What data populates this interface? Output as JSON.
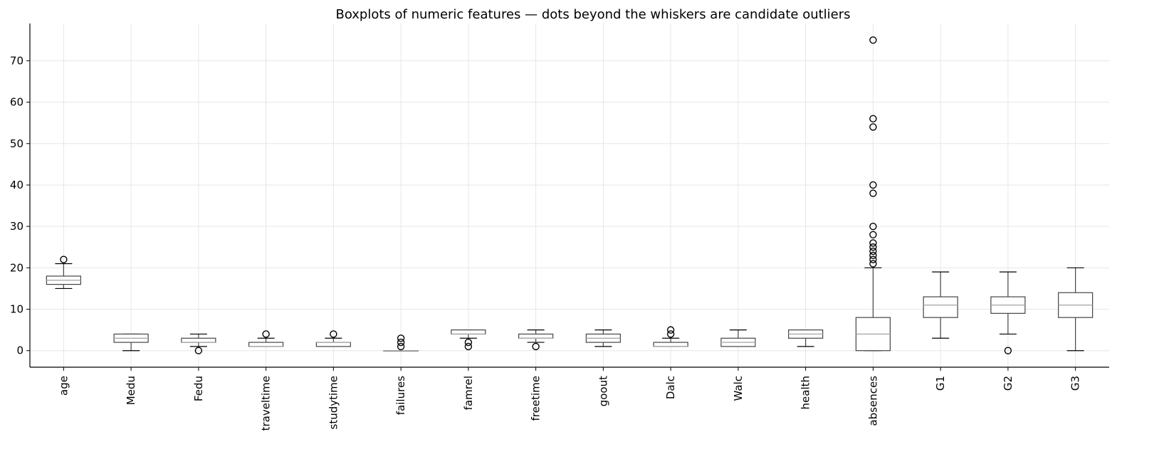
{
  "chart_data": {
    "type": "boxplot",
    "title": "Boxplots of numeric features — dots beyond the whiskers are candidate outliers",
    "xlabel": "",
    "ylabel": "",
    "ylim": [
      -4,
      79
    ],
    "yticks": [
      0,
      10,
      20,
      30,
      40,
      50,
      60,
      70
    ],
    "grid": true,
    "legend": "none",
    "colors": {
      "box": "#444444",
      "median": "#aaaaaa",
      "grid": "#e6e6e6",
      "axis": "#000000",
      "outlier": "#000000"
    },
    "boxes": [
      {
        "name": "age",
        "whislo": 15,
        "q1": 16,
        "med": 17,
        "q3": 18,
        "whishi": 21,
        "fliers": [
          22
        ]
      },
      {
        "name": "Medu",
        "whislo": 0,
        "q1": 2,
        "med": 3,
        "q3": 4,
        "whishi": 4,
        "fliers": []
      },
      {
        "name": "Fedu",
        "whislo": 1,
        "q1": 2,
        "med": 2,
        "q3": 3,
        "whishi": 4,
        "fliers": [
          0
        ]
      },
      {
        "name": "traveltime",
        "whislo": 1,
        "q1": 1,
        "med": 1,
        "q3": 2,
        "whishi": 3,
        "fliers": [
          4
        ]
      },
      {
        "name": "studytime",
        "whislo": 1,
        "q1": 1,
        "med": 2,
        "q3": 2,
        "whishi": 3,
        "fliers": [
          4
        ]
      },
      {
        "name": "failures",
        "whislo": 0,
        "q1": 0,
        "med": 0,
        "q3": 0,
        "whishi": 0,
        "fliers": [
          1,
          2,
          3
        ]
      },
      {
        "name": "famrel",
        "whislo": 3,
        "q1": 4,
        "med": 4,
        "q3": 5,
        "whishi": 5,
        "fliers": [
          1,
          2
        ]
      },
      {
        "name": "freetime",
        "whislo": 2,
        "q1": 3,
        "med": 3,
        "q3": 4,
        "whishi": 5,
        "fliers": [
          1
        ]
      },
      {
        "name": "goout",
        "whislo": 1,
        "q1": 2,
        "med": 3,
        "q3": 4,
        "whishi": 5,
        "fliers": []
      },
      {
        "name": "Dalc",
        "whislo": 1,
        "q1": 1,
        "med": 1,
        "q3": 2,
        "whishi": 3,
        "fliers": [
          4,
          5
        ]
      },
      {
        "name": "Walc",
        "whislo": 1,
        "q1": 1,
        "med": 2,
        "q3": 3,
        "whishi": 5,
        "fliers": []
      },
      {
        "name": "health",
        "whislo": 1,
        "q1": 3,
        "med": 4,
        "q3": 5,
        "whishi": 5,
        "fliers": []
      },
      {
        "name": "absences",
        "whislo": 0,
        "q1": 0,
        "med": 4,
        "q3": 8,
        "whishi": 20,
        "fliers": [
          21,
          22,
          23,
          24,
          25,
          26,
          28,
          30,
          38,
          40,
          54,
          56,
          75
        ]
      },
      {
        "name": "G1",
        "whislo": 3,
        "q1": 8,
        "med": 11,
        "q3": 13,
        "whishi": 19,
        "fliers": []
      },
      {
        "name": "G2",
        "whislo": 4,
        "q1": 9,
        "med": 11,
        "q3": 13,
        "whishi": 19,
        "fliers": [
          0
        ]
      },
      {
        "name": "G3",
        "whislo": 0,
        "q1": 8,
        "med": 11,
        "q3": 14,
        "whishi": 20,
        "fliers": []
      }
    ]
  }
}
